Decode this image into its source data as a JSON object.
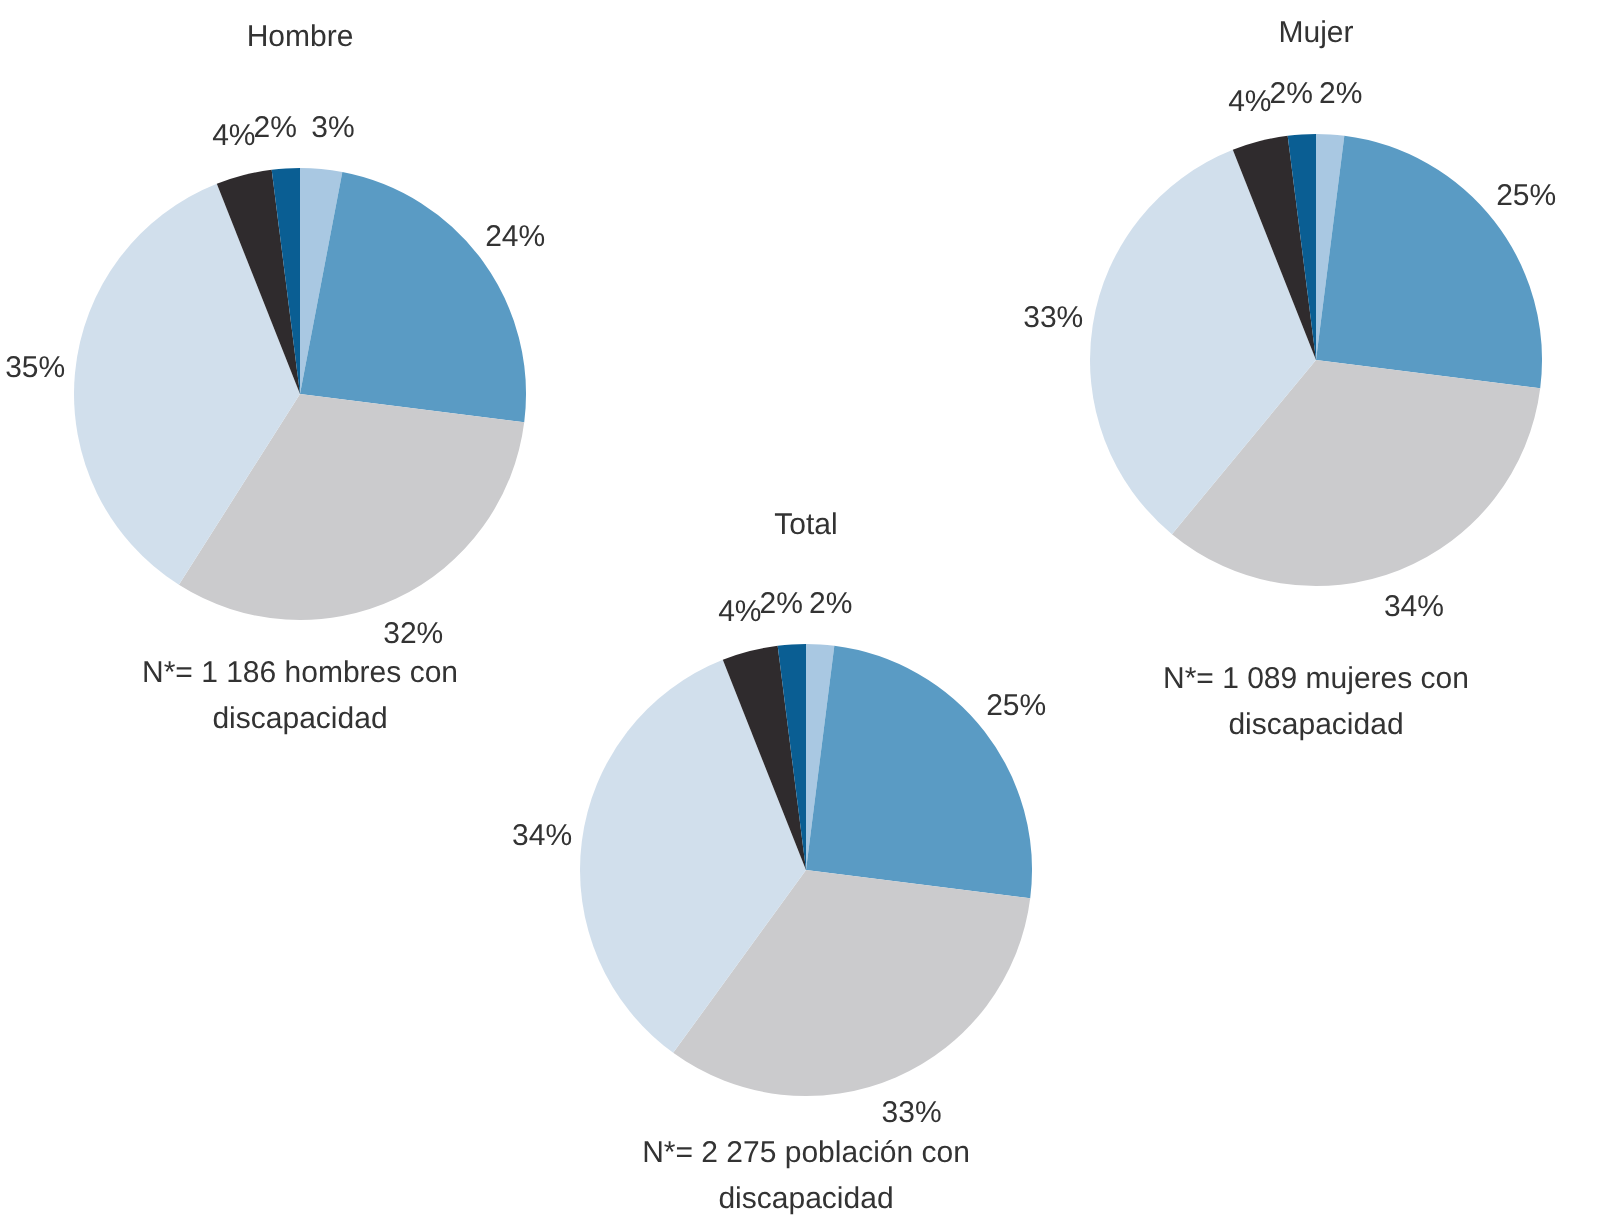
{
  "chart_data": [
    {
      "type": "pie",
      "title": "Hombre",
      "categories": [
        null,
        null,
        null,
        null,
        null,
        null
      ],
      "values": [
        3,
        24,
        32,
        35,
        4,
        2
      ],
      "value_labels": [
        "3%",
        "24%",
        "32%",
        "35%",
        "4%",
        "2%"
      ],
      "colors": [
        "#a9c8e2",
        "#5a9bc4",
        "#cbcbcd",
        "#d1dfec",
        "#2f2b2d",
        "#0a5e93"
      ],
      "annotations": [
        "N*= 1 186 hombres con discapacidad"
      ]
    },
    {
      "type": "pie",
      "title": "Mujer",
      "categories": [
        null,
        null,
        null,
        null,
        null,
        null
      ],
      "values": [
        2,
        25,
        34,
        33,
        4,
        2
      ],
      "value_labels": [
        "2%",
        "25%",
        "34%",
        "33%",
        "4%",
        "2%"
      ],
      "colors": [
        "#a9c8e2",
        "#5a9bc4",
        "#cbcbcd",
        "#d1dfec",
        "#2f2b2d",
        "#0a5e93"
      ],
      "annotations": [
        "N*= 1 089 mujeres con discapacidad"
      ]
    },
    {
      "type": "pie",
      "title": "Total",
      "categories": [
        null,
        null,
        null,
        null,
        null,
        null
      ],
      "values": [
        2,
        25,
        33,
        34,
        4,
        2
      ],
      "value_labels": [
        "2%",
        "25%",
        "33%",
        "34%",
        "4%",
        "2%"
      ],
      "colors": [
        "#a9c8e2",
        "#5a9bc4",
        "#cbcbcd",
        "#d1dfec",
        "#2f2b2d",
        "#0a5e93"
      ],
      "annotations": [
        "N*= 2 275 población con discapacidad"
      ]
    }
  ]
}
